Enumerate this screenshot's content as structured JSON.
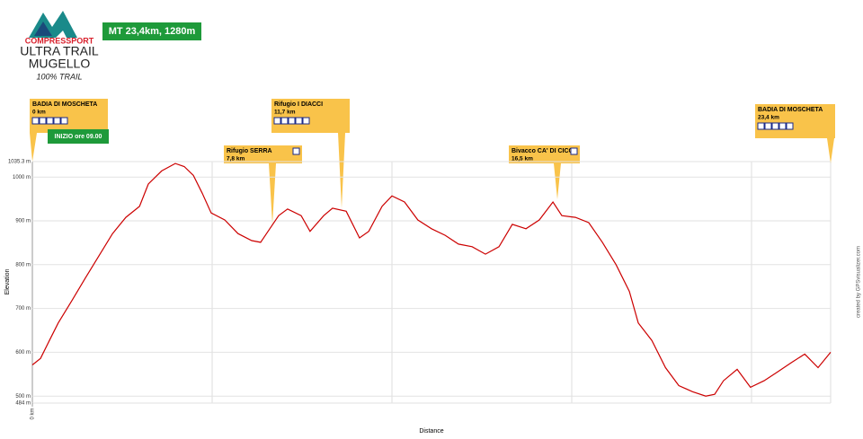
{
  "header": {
    "brand": "COMPRESSPORT",
    "line1": "ULTRA TRAIL",
    "line2": "MUGELLO",
    "tag": "100% TRAIL",
    "badge": "MT 23,4km, 1280m",
    "start": "INIZIO ore 09.00"
  },
  "chart_data": {
    "type": "line",
    "xlabel": "Distance",
    "ylabel": "Elevation",
    "credit": "created by GPSvisualizer.com",
    "x": [
      0,
      0.24,
      0.5,
      0.76,
      1.16,
      1.55,
      1.95,
      2.35,
      2.74,
      3.14,
      3.4,
      3.79,
      4.19,
      4.45,
      4.72,
      4.98,
      5.24,
      5.64,
      6.03,
      6.43,
      6.69,
      6.96,
      7.22,
      7.48,
      7.88,
      8.14,
      8.54,
      8.8,
      9.2,
      9.59,
      9.86,
      10.25,
      10.54,
      10.91,
      11.3,
      11.7,
      12.1,
      12.49,
      12.89,
      13.28,
      13.68,
      14.07,
      14.47,
      14.86,
      15.26,
      15.52,
      15.92,
      16.31,
      16.71,
      17.11,
      17.5,
      17.76,
      18.16,
      18.56,
      18.95,
      19.35,
      19.74,
      20.0,
      20.26,
      20.66,
      21.05,
      21.45,
      21.84,
      22.24,
      22.64,
      23.03,
      23.4
    ],
    "series": [
      {
        "name": "Elevation",
        "color": "#cc0000",
        "values": [
          571,
          586,
          627,
          667,
          718,
          769,
          820,
          871,
          908,
          933,
          984,
          1014,
          1031,
          1024,
          1004,
          963,
          918,
          902,
          871,
          855,
          851,
          882,
          912,
          927,
          912,
          876,
          912,
          929,
          922,
          861,
          876,
          933,
          957,
          943,
          902,
          882,
          867,
          847,
          841,
          824,
          841,
          892,
          882,
          902,
          943,
          912,
          908,
          896,
          851,
          800,
          739,
          667,
          627,
          565,
          524,
          510,
          500,
          504,
          535,
          561,
          520,
          535,
          555,
          576,
          596,
          565,
          600
        ]
      }
    ],
    "xlim": [
      0,
      23.4
    ],
    "ylim": [
      484,
      1035.3
    ],
    "xticks": [
      {
        "value": 0,
        "label": "0 km"
      }
    ],
    "yticks": [
      {
        "value": 484,
        "label": "484 m"
      },
      {
        "value": 500,
        "label": "500 m"
      },
      {
        "value": 600,
        "label": "600 m"
      },
      {
        "value": 700,
        "label": "700 m"
      },
      {
        "value": 800,
        "label": "800 m"
      },
      {
        "value": 900,
        "label": "900 m"
      },
      {
        "value": 1000,
        "label": "1000 m"
      },
      {
        "value": 1035.3,
        "label": "1035.3 m"
      }
    ],
    "grid": true,
    "annotations": [
      {
        "label": "BADIA DI MOSCHETA",
        "km": "0 km"
      },
      {
        "label": "Rifugio SERRA",
        "km": "7,8 km"
      },
      {
        "label": "Rifugio I DIACCI",
        "km": "11,7  km"
      },
      {
        "label": "Bivacco CA' DI CICCI",
        "km": "16,5 km"
      },
      {
        "label": "BADIA DI MOSCHETA",
        "km": "23,4 km"
      }
    ]
  }
}
